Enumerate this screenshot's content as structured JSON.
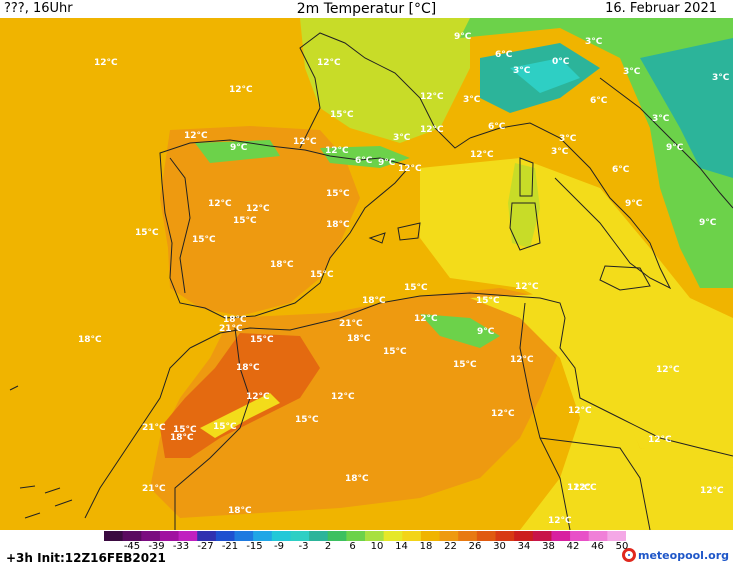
{
  "header": {
    "left": "???, 16Uhr",
    "title": "2m Temperatur [°C]",
    "date": "16. Februar 2021"
  },
  "colors": {
    "ocean_base": "#f0b400",
    "warm_orange": "#ee9a10",
    "hot_orange": "#e46a10",
    "yellow": "#f3dc1a",
    "yellow_green": "#c8dc28",
    "green": "#6cd24a",
    "teal": "#2cb49a",
    "cyan": "#2ecfc4",
    "border": "#222222"
  },
  "labels": [
    {
      "text": "12°C"
    },
    {
      "text": "12°C"
    },
    {
      "text": "12°C"
    },
    {
      "text": "9°C"
    },
    {
      "text": "6°C"
    },
    {
      "text": "3°C"
    },
    {
      "text": "3°C"
    },
    {
      "text": "0°C"
    },
    {
      "text": "3°C"
    },
    {
      "text": "3°C"
    },
    {
      "text": "12°C"
    },
    {
      "text": "15°C"
    },
    {
      "text": "3°C"
    },
    {
      "text": "6°C"
    },
    {
      "text": "12°C"
    },
    {
      "text": "3°C"
    },
    {
      "text": "6°C"
    },
    {
      "text": "3°C"
    },
    {
      "text": "12°C"
    },
    {
      "text": "9°C"
    },
    {
      "text": "3°C"
    },
    {
      "text": "12°C"
    },
    {
      "text": "9°C"
    },
    {
      "text": "12°C"
    },
    {
      "text": "6°C"
    },
    {
      "text": "3°C"
    },
    {
      "text": "12°C"
    },
    {
      "text": "12°C"
    },
    {
      "text": "6°C"
    },
    {
      "text": "9°C"
    },
    {
      "text": "12°C"
    },
    {
      "text": "12°C"
    },
    {
      "text": "15°C"
    },
    {
      "text": "18°C"
    },
    {
      "text": "15°C"
    },
    {
      "text": "15°C"
    },
    {
      "text": "18°C"
    },
    {
      "text": "15°C"
    },
    {
      "text": "9°C"
    },
    {
      "text": "9°C"
    },
    {
      "text": "15°C"
    },
    {
      "text": "18°C"
    },
    {
      "text": "15°C"
    },
    {
      "text": "12°C"
    },
    {
      "text": "18°C"
    },
    {
      "text": "21°C"
    },
    {
      "text": "21°C"
    },
    {
      "text": "12°C"
    },
    {
      "text": "9°C"
    },
    {
      "text": "15°C"
    },
    {
      "text": "18°C"
    },
    {
      "text": "15°C"
    },
    {
      "text": "12°C"
    },
    {
      "text": "12°C"
    },
    {
      "text": "18°C"
    },
    {
      "text": "15°C"
    },
    {
      "text": "12°C"
    },
    {
      "text": "12°C"
    },
    {
      "text": "15°C"
    },
    {
      "text": "12°C"
    },
    {
      "text": "21°C"
    },
    {
      "text": "15°C"
    },
    {
      "text": "18°C"
    },
    {
      "text": "15°C"
    },
    {
      "text": "18°C"
    },
    {
      "text": "12°C"
    },
    {
      "text": "12°C"
    },
    {
      "text": "12°C"
    },
    {
      "text": "21°C"
    },
    {
      "text": "18°C"
    },
    {
      "text": "15°C"
    },
    {
      "text": "12°C"
    },
    {
      "text": "12°C"
    },
    {
      "text": "18°C"
    },
    {
      "text": "12°C"
    }
  ],
  "scale": {
    "ticks": [
      "-45",
      "-39",
      "-33",
      "-27",
      "-21",
      "-15",
      "-9",
      "-3",
      "2",
      "6",
      "10",
      "14",
      "18",
      "22",
      "26",
      "30",
      "34",
      "38",
      "42",
      "46",
      "50"
    ],
    "colors": [
      "#3a0a40",
      "#5a0a60",
      "#7a0c80",
      "#a010a0",
      "#c020c0",
      "#3030b0",
      "#1e50d0",
      "#1e7ae0",
      "#20a6e6",
      "#22c8d8",
      "#2ecfc4",
      "#2cb49a",
      "#3cc060",
      "#6cd24a",
      "#a8e040",
      "#e6e828",
      "#f3d418",
      "#f0b400",
      "#ee9a10",
      "#e87a12",
      "#e05a10",
      "#d83a14",
      "#cc1e1e",
      "#c81448",
      "#d820a0",
      "#e850c8",
      "#f080d8",
      "#f4a8e6"
    ]
  },
  "footer": {
    "init": "+3h  Init:12Z16FEB2021",
    "brand": "meteopool.org"
  }
}
